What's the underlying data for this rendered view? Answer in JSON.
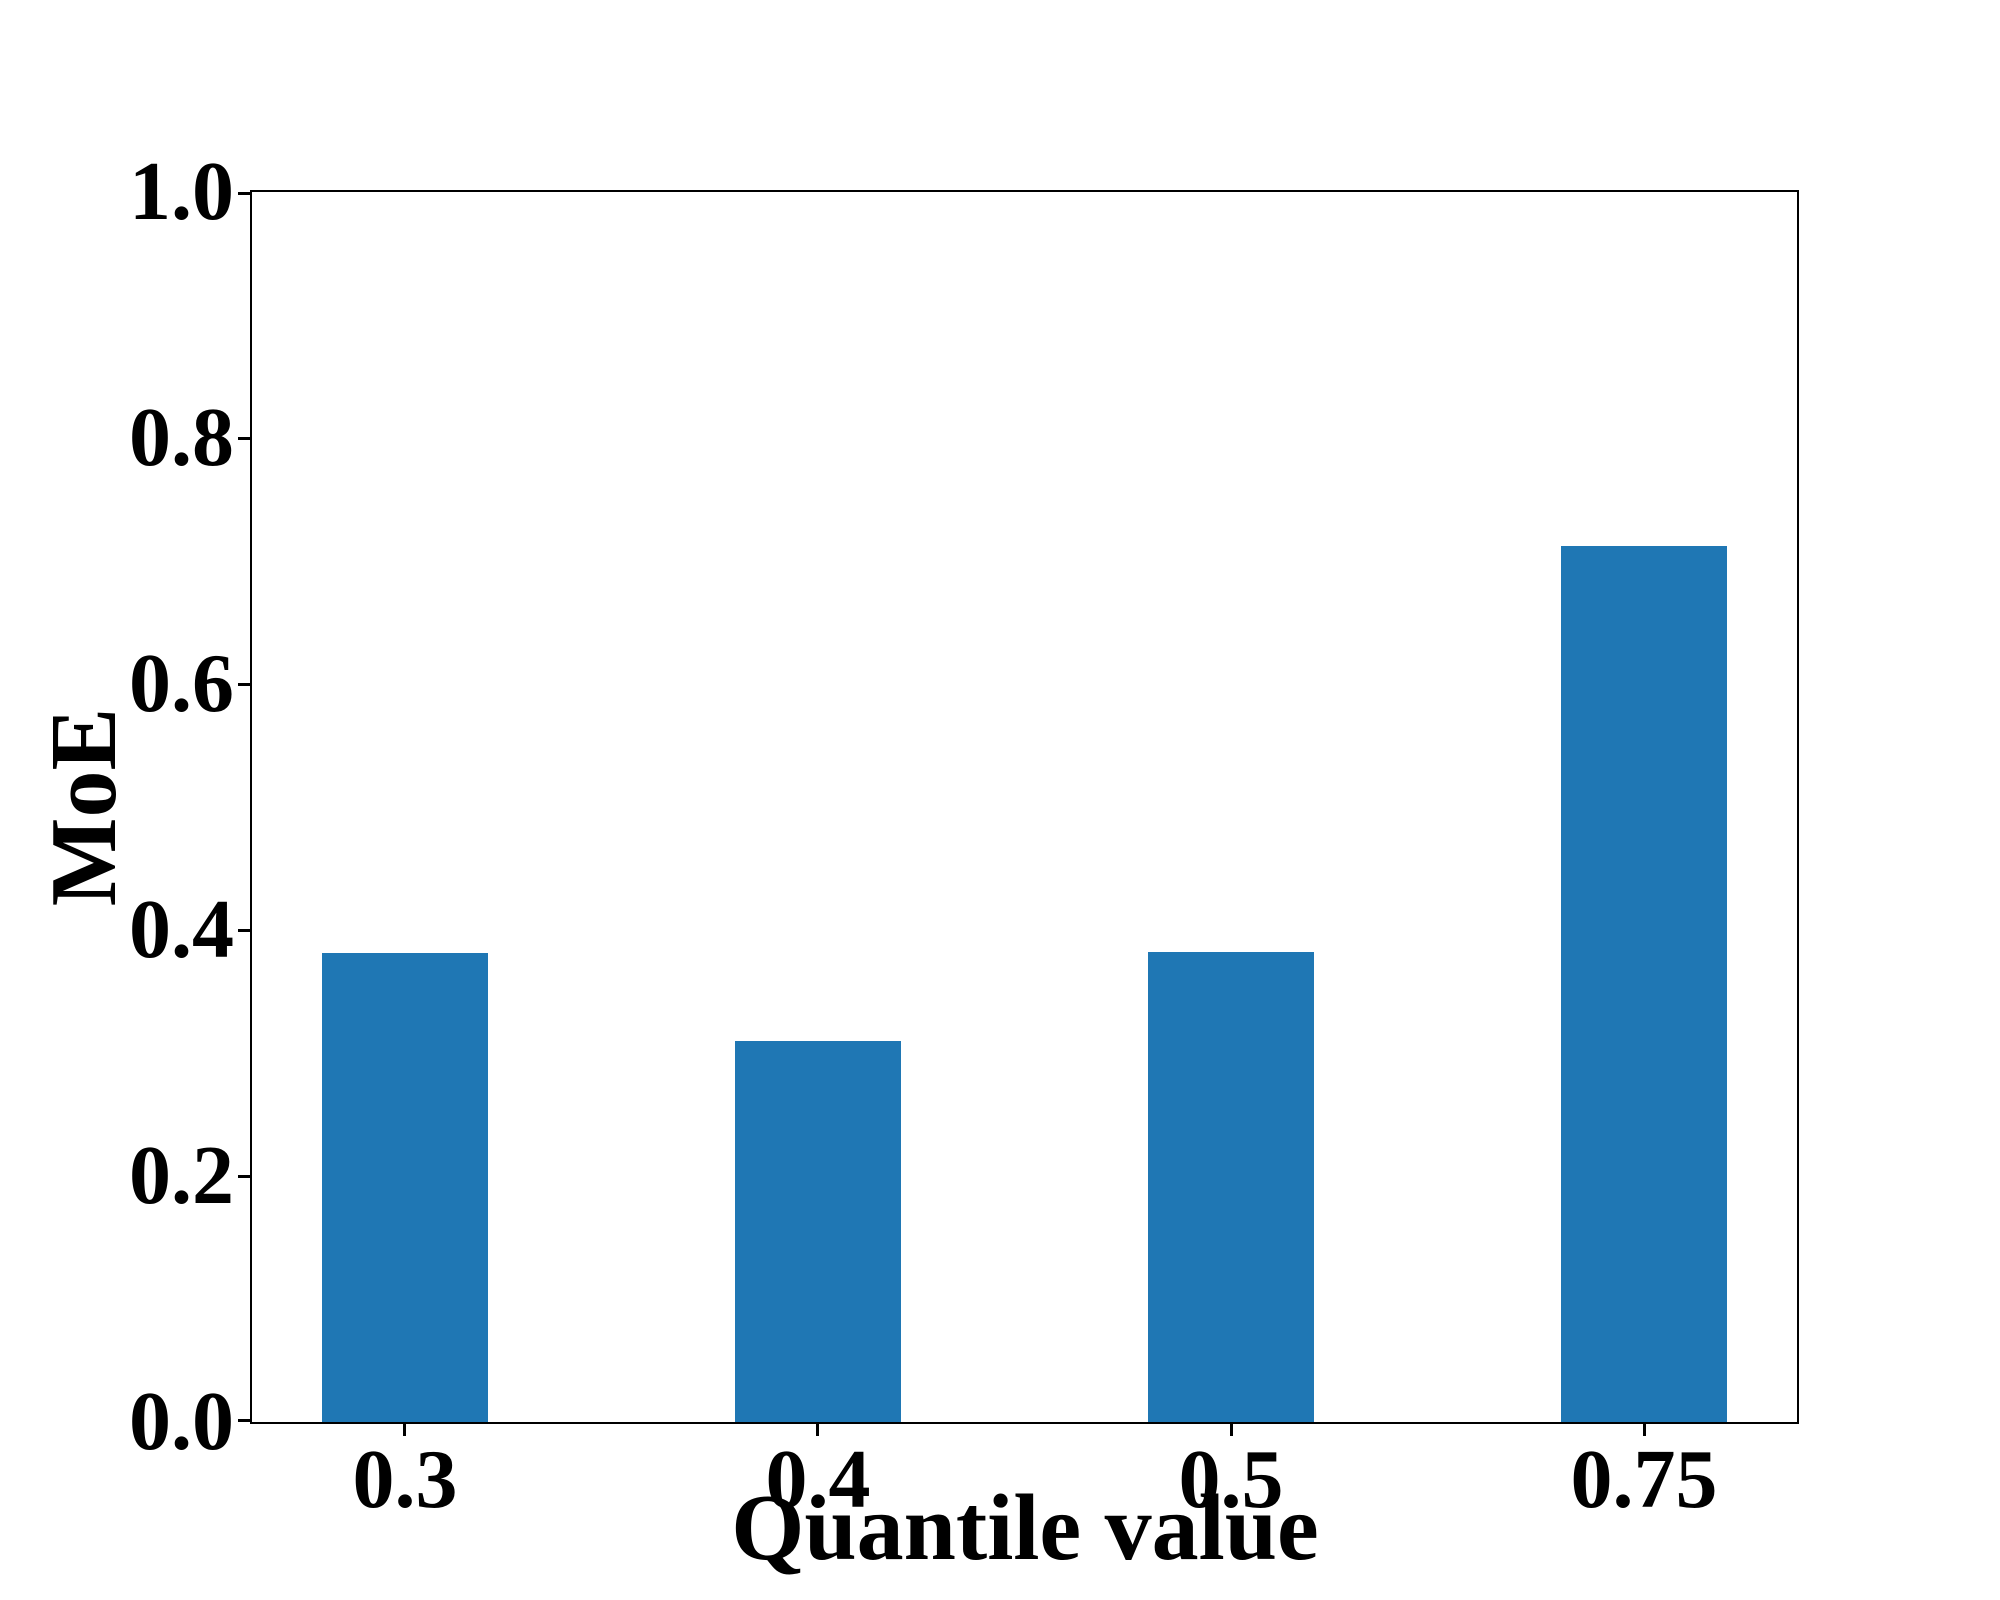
{
  "chart_data": {
    "type": "bar",
    "title": "",
    "categories": [
      "0.3",
      "0.4",
      "0.5",
      "0.75"
    ],
    "values": [
      0.381,
      0.31,
      0.382,
      0.712
    ],
    "xlabel": "Quantile value",
    "ylabel": "MoE",
    "ylim": [
      0.0,
      1.0
    ],
    "yticks": [
      "0.0",
      "0.2",
      "0.4",
      "0.6",
      "0.8",
      "1.0"
    ],
    "grid": false,
    "legend": null,
    "bar_color": "#1f77b4",
    "axis_color": "#000000",
    "background_color": "#ffffff"
  }
}
